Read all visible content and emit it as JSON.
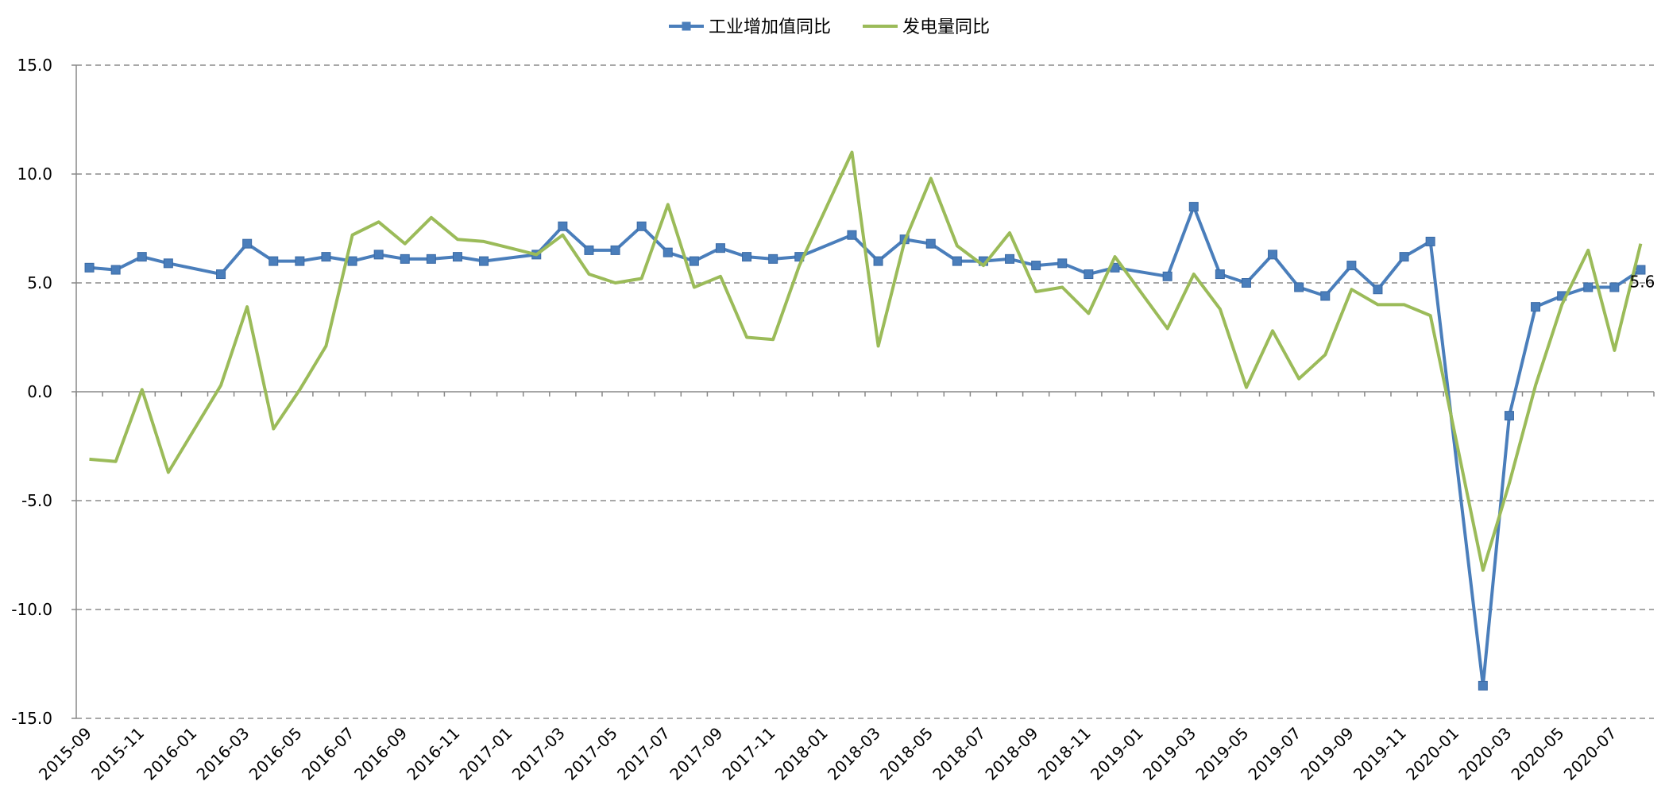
{
  "chart_data": {
    "type": "line",
    "title": "",
    "xlabel": "",
    "ylabel": "",
    "ylim": [
      -15,
      15
    ],
    "yticks": [
      "15.0",
      "10.0",
      "5.0",
      "0.0",
      "-5.0",
      "-10.0",
      "-15.0"
    ],
    "grid": "horizontal-dashed",
    "legend_position": "top",
    "x": [
      "2015-09",
      "2015-10",
      "2015-11",
      "2015-12",
      "2016-01",
      "2016-02",
      "2016-03",
      "2016-04",
      "2016-05",
      "2016-06",
      "2016-07",
      "2016-08",
      "2016-09",
      "2016-10",
      "2016-11",
      "2016-12",
      "2017-01",
      "2017-02",
      "2017-03",
      "2017-04",
      "2017-05",
      "2017-06",
      "2017-07",
      "2017-08",
      "2017-09",
      "2017-10",
      "2017-11",
      "2017-12",
      "2018-01",
      "2018-02",
      "2018-03",
      "2018-04",
      "2018-05",
      "2018-06",
      "2018-07",
      "2018-08",
      "2018-09",
      "2018-10",
      "2018-11",
      "2018-12",
      "2019-01",
      "2019-02",
      "2019-03",
      "2019-04",
      "2019-05",
      "2019-06",
      "2019-07",
      "2019-08",
      "2019-09",
      "2019-10",
      "2019-11",
      "2019-12",
      "2020-01",
      "2020-02",
      "2020-03",
      "2020-04",
      "2020-05",
      "2020-06",
      "2020-07",
      "2020-08"
    ],
    "xtick_labels": [
      "2015-09",
      "2015-11",
      "2016-01",
      "2016-03",
      "2016-05",
      "2016-07",
      "2016-09",
      "2016-11",
      "2017-01",
      "2017-03",
      "2017-05",
      "2017-07",
      "2017-09",
      "2017-11",
      "2018-01",
      "2018-03",
      "2018-05",
      "2018-07",
      "2018-09",
      "2018-11",
      "2019-01",
      "2019-03",
      "2019-05",
      "2019-07",
      "2019-09",
      "2019-11",
      "2020-01",
      "2020-03",
      "2020-05",
      "2020-07"
    ],
    "series": [
      {
        "name": "工业增加值同比",
        "color": "#4A7EBB",
        "marker": "square",
        "values": [
          5.7,
          5.6,
          6.2,
          5.9,
          null,
          5.4,
          6.8,
          6.0,
          6.0,
          6.2,
          6.0,
          6.3,
          6.1,
          6.1,
          6.2,
          6.0,
          null,
          6.3,
          7.6,
          6.5,
          6.5,
          7.6,
          6.4,
          6.0,
          6.6,
          6.2,
          6.1,
          6.2,
          null,
          7.2,
          6.0,
          7.0,
          6.8,
          6.0,
          6.0,
          6.1,
          5.8,
          5.9,
          5.4,
          5.7,
          null,
          5.3,
          8.5,
          5.4,
          5.0,
          6.3,
          4.8,
          4.4,
          5.8,
          4.7,
          6.2,
          6.9,
          null,
          -13.5,
          -1.1,
          3.9,
          4.4,
          4.8,
          4.8,
          5.6
        ]
      },
      {
        "name": "发电量同比",
        "color": "#9BBB59",
        "marker": "none",
        "values": [
          -3.1,
          -3.2,
          0.1,
          -3.7,
          null,
          0.3,
          3.9,
          -1.7,
          0.1,
          2.1,
          7.2,
          7.8,
          6.8,
          8.0,
          7.0,
          6.9,
          null,
          6.3,
          7.2,
          5.4,
          5.0,
          5.2,
          8.6,
          4.8,
          5.3,
          2.5,
          2.4,
          5.8,
          null,
          11.0,
          2.1,
          6.9,
          9.8,
          6.7,
          5.8,
          7.3,
          4.6,
          4.8,
          3.6,
          6.2,
          null,
          2.9,
          5.4,
          3.8,
          0.2,
          2.8,
          0.6,
          1.7,
          4.7,
          4.0,
          4.0,
          3.5,
          null,
          -8.2,
          -4.2,
          0.3,
          4.0,
          6.5,
          1.9,
          6.8
        ]
      }
    ],
    "data_labels": [
      {
        "series": 0,
        "x": "2020-08",
        "text": "5.6"
      }
    ]
  }
}
